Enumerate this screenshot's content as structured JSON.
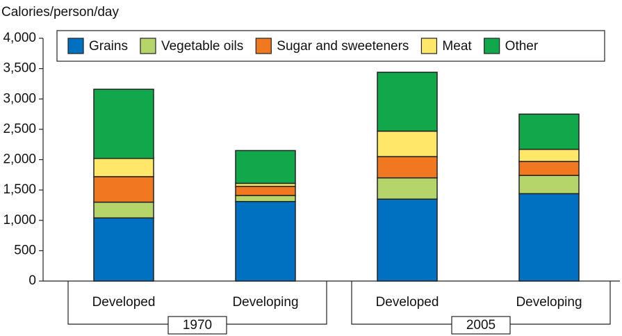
{
  "chart_data": {
    "type": "stacked-bar",
    "y_label": "Calories/person/day",
    "categories": [
      "Developed",
      "Developing",
      "Developed",
      "Developing"
    ],
    "groups": [
      "1970",
      "2005"
    ],
    "series": [
      {
        "name": "Grains",
        "color": "#0070c0",
        "values": [
          1040,
          1310,
          1350,
          1440
        ]
      },
      {
        "name": "Vegetable oils",
        "color": "#b5d56a",
        "values": [
          260,
          100,
          350,
          300
        ]
      },
      {
        "name": "Sugar and sweeteners",
        "color": "#f07820",
        "values": [
          420,
          150,
          350,
          230
        ]
      },
      {
        "name": "Meat",
        "color": "#ffe76a",
        "values": [
          300,
          50,
          420,
          200
        ]
      },
      {
        "name": "Other",
        "color": "#10a84a",
        "values": [
          1140,
          540,
          970,
          580
        ]
      }
    ],
    "ylim": [
      0,
      4000
    ],
    "yticks": [
      0,
      500,
      {
        "value": 1000,
        "label": "1,000"
      },
      {
        "value": 1500,
        "label": "1,500"
      },
      {
        "value": 2000,
        "label": "2,000"
      },
      {
        "value": 2500,
        "label": "2,500"
      },
      {
        "value": 3000,
        "label": "3,000"
      },
      {
        "value": 3500,
        "label": "3,500"
      },
      {
        "value": 4000,
        "label": "4,000"
      }
    ],
    "legend": "top"
  }
}
